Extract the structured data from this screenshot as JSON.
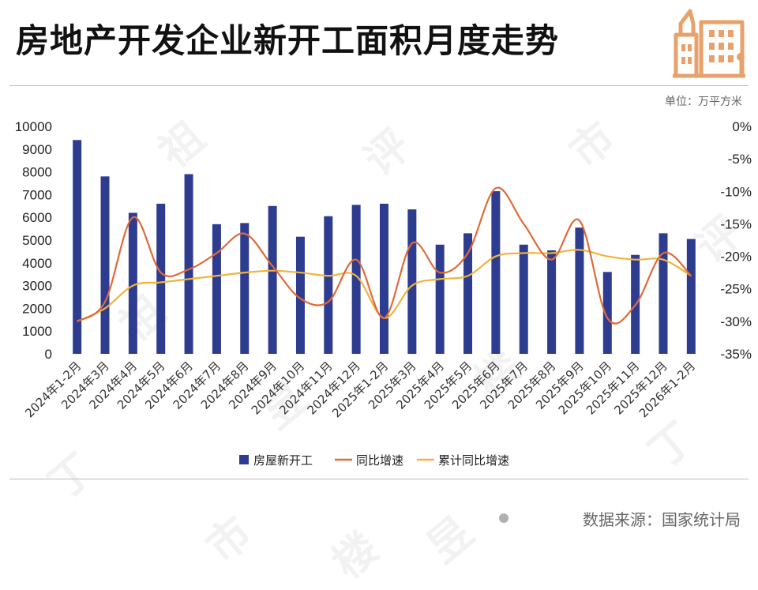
{
  "header": {
    "title": "房地产开发企业新开工面积月度走势",
    "unit": "单位：万平方米"
  },
  "footer": {
    "source": "数据来源：国家统计局"
  },
  "watermark_text": [
    "丁",
    "祖",
    "昱",
    "评",
    "楼",
    "市"
  ],
  "colors": {
    "bar": "#2e3c8f",
    "yoy": "#e06a3a",
    "cumulative": "#f0b43c",
    "logo": "#e8a16b"
  },
  "chart_data": {
    "type": "bar",
    "categories": [
      "2024年1-2月",
      "2024年3月",
      "2024年4月",
      "2024年5月",
      "2024年6月",
      "2024年7月",
      "2024年8月",
      "2024年9月",
      "2024年10月",
      "2024年11月",
      "2024年12月",
      "2025年1-2月",
      "2025年3月",
      "2025年4月",
      "2025年5月",
      "2025年6月",
      "2025年7月",
      "2025年8月",
      "2025年9月",
      "2025年10月",
      "2025年11月",
      "2025年12月",
      "2026年1-2月"
    ],
    "series": [
      {
        "name": "房屋新开工",
        "type": "bar",
        "axis": "left",
        "values": [
          9400,
          7800,
          6200,
          6600,
          7900,
          5700,
          5750,
          6500,
          5150,
          6050,
          6550,
          6600,
          6350,
          4800,
          5300,
          7150,
          4800,
          4550,
          5550,
          3600,
          4350,
          5300,
          5050
        ]
      },
      {
        "name": "同比增速",
        "type": "line",
        "axis": "right",
        "values": [
          -30.0,
          -27.0,
          -14.0,
          -22.5,
          -22.0,
          -19.5,
          -16.5,
          -21.5,
          -26.5,
          -27.0,
          -20.5,
          -29.5,
          -18.0,
          -22.5,
          -19.5,
          -9.5,
          -15.0,
          -20.5,
          -14.5,
          -29.5,
          -27.5,
          -19.5,
          -23.0
        ]
      },
      {
        "name": "累计同比增速",
        "type": "line",
        "axis": "right",
        "values": [
          -30.0,
          -28.0,
          -24.5,
          -24.0,
          -23.5,
          -23.0,
          -22.5,
          -22.2,
          -22.5,
          -23.0,
          -23.0,
          -29.5,
          -24.5,
          -23.5,
          -23.0,
          -20.0,
          -19.5,
          -19.5,
          -19.0,
          -20.0,
          -20.5,
          -20.5,
          -23.0
        ]
      }
    ],
    "ylim_left": [
      0,
      10000
    ],
    "yticks_left": [
      "10000",
      "9000",
      "8000",
      "7000",
      "6000",
      "5000",
      "4000",
      "3000",
      "2000",
      "1000",
      "0"
    ],
    "ylim_right": [
      -35,
      0
    ],
    "yticks_right": [
      "0%",
      "-5%",
      "-10%",
      "-15%",
      "-20%",
      "-25%",
      "-30%",
      "-35%"
    ],
    "legend_position": "bottom",
    "grid": false
  }
}
